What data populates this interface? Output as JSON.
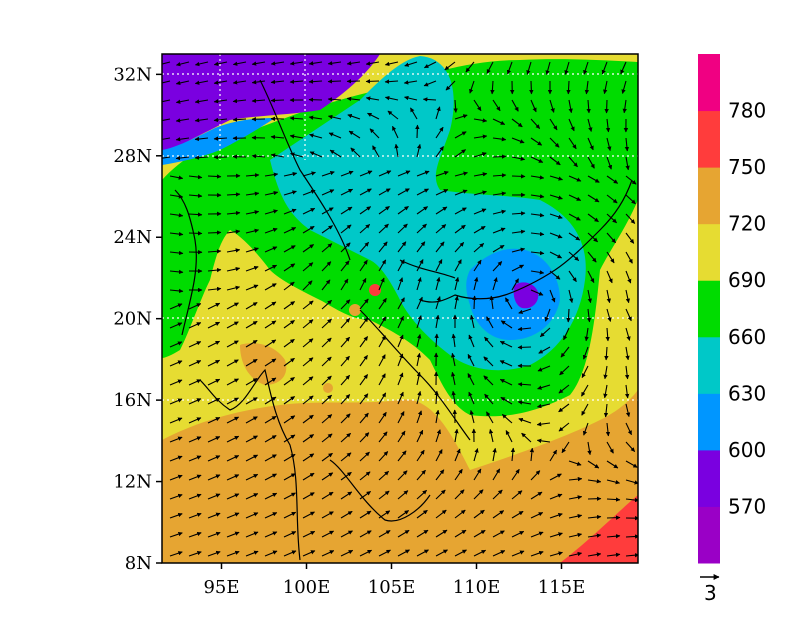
{
  "map": {
    "lon_range": [
      91.5,
      119.5
    ],
    "lat_range": [
      8,
      33
    ],
    "lon_ticks": [
      95,
      100,
      105,
      110,
      115
    ],
    "lat_ticks": [
      8,
      12,
      16,
      20,
      24,
      28,
      32
    ],
    "lon_tick_labels": [
      "95E",
      "100E",
      "105E",
      "110E",
      "115E"
    ],
    "lat_tick_labels": [
      "8N",
      "12N",
      "16N",
      "20N",
      "24N",
      "28N",
      "32N"
    ],
    "field": "contour-filled height with wind vectors",
    "cyclone_center": {
      "lon": 113,
      "lat": 21
    }
  },
  "colorbar": {
    "labels": [
      "570",
      "600",
      "630",
      "660",
      "690",
      "720",
      "750",
      "780"
    ],
    "colors": [
      "#9a00c6",
      "#7a00e0",
      "#0096ff",
      "#00c8c8",
      "#00dc00",
      "#e6dc32",
      "#e6a532",
      "#ff3c3c",
      "#f00082"
    ]
  },
  "reference_vector": {
    "label": "3"
  },
  "palette": {
    "violet": "#9a00c6",
    "purple": "#7a00e0",
    "blue": "#0096ff",
    "cyan": "#00c8c8",
    "green": "#00dc00",
    "yellow": "#e6dc32",
    "orange": "#e6a532",
    "red": "#ff3c3c",
    "magenta": "#f00082"
  }
}
